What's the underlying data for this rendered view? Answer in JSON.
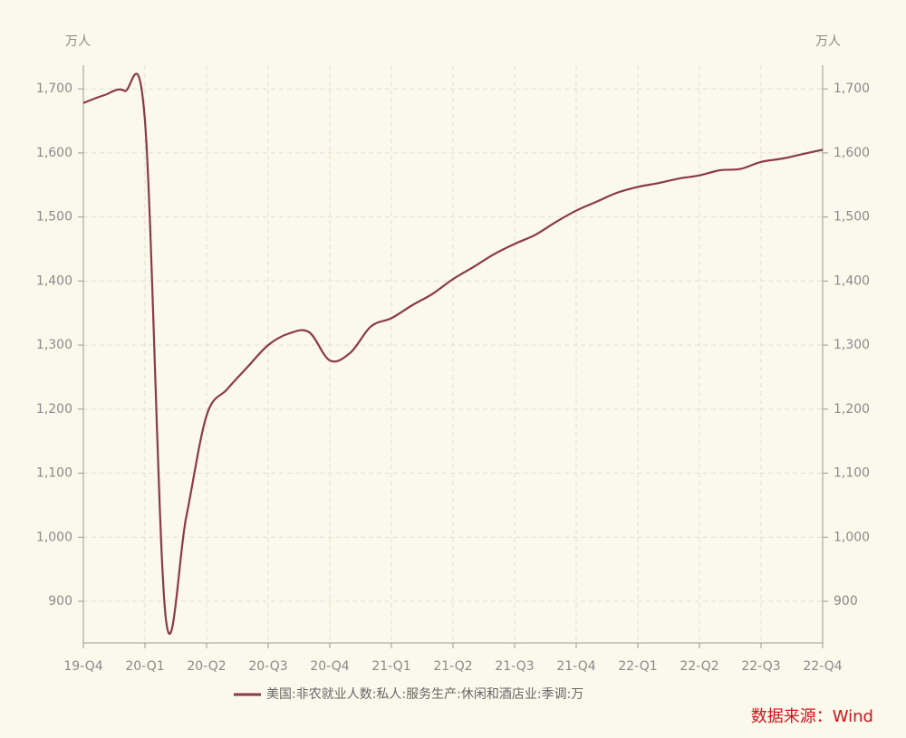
{
  "chart_data": {
    "type": "line",
    "y_unit": "万人",
    "y2_unit": "万人",
    "categories": [
      "19-Q4",
      null,
      null,
      "20-Q1",
      null,
      null,
      "20-Q2",
      null,
      null,
      "20-Q3",
      null,
      null,
      "20-Q4",
      null,
      null,
      "21-Q1",
      null,
      null,
      "21-Q2",
      null,
      null,
      "21-Q3",
      null,
      null,
      "21-Q4",
      null,
      null,
      "22-Q1",
      null,
      null,
      "22-Q2",
      null,
      null,
      "22-Q3",
      null,
      null,
      "22-Q4"
    ],
    "series": [
      {
        "name": "美国:非农就业人数:私人:服务生产:休闲和酒店业:季调:万",
        "color": "#8b3a46",
        "values": [
          1678,
          1690,
          1697,
          1650,
          878,
          1030,
          1190,
          1231,
          1266,
          1300,
          1318,
          1320,
          1276,
          1288,
          1329,
          1342,
          1362,
          1380,
          1403,
          1422,
          1442,
          1458,
          1472,
          1492,
          1510,
          1524,
          1538,
          1547,
          1553,
          1560,
          1565,
          1573,
          1575,
          1586,
          1591,
          1598,
          1605
        ]
      }
    ],
    "ylim": [
      835,
      1737
    ],
    "yticks": [
      900,
      {
        "value": 1000,
        "label": "1,000"
      },
      {
        "value": 1100,
        "label": "1,100"
      },
      {
        "value": 1200,
        "label": "1,200"
      },
      {
        "value": 1300,
        "label": "1,300"
      },
      {
        "value": 1400,
        "label": "1,400"
      },
      {
        "value": 1500,
        "label": "1,500"
      },
      {
        "value": 1600,
        "label": "1,600"
      },
      {
        "value": 1700,
        "label": "1,700"
      }
    ],
    "y2lim": [
      835,
      1737
    ],
    "y2ticks": [
      900,
      {
        "value": 1000,
        "label": "1,000"
      },
      {
        "value": 1100,
        "label": "1,100"
      },
      {
        "value": 1200,
        "label": "1,200"
      },
      {
        "value": 1300,
        "label": "1,300"
      },
      {
        "value": 1400,
        "label": "1,400"
      },
      {
        "value": 1500,
        "label": "1,500"
      },
      {
        "value": 1600,
        "label": "1,600"
      },
      {
        "value": 1700,
        "label": "1,700"
      }
    ],
    "grid": true,
    "source": "数据来源：Wind"
  }
}
